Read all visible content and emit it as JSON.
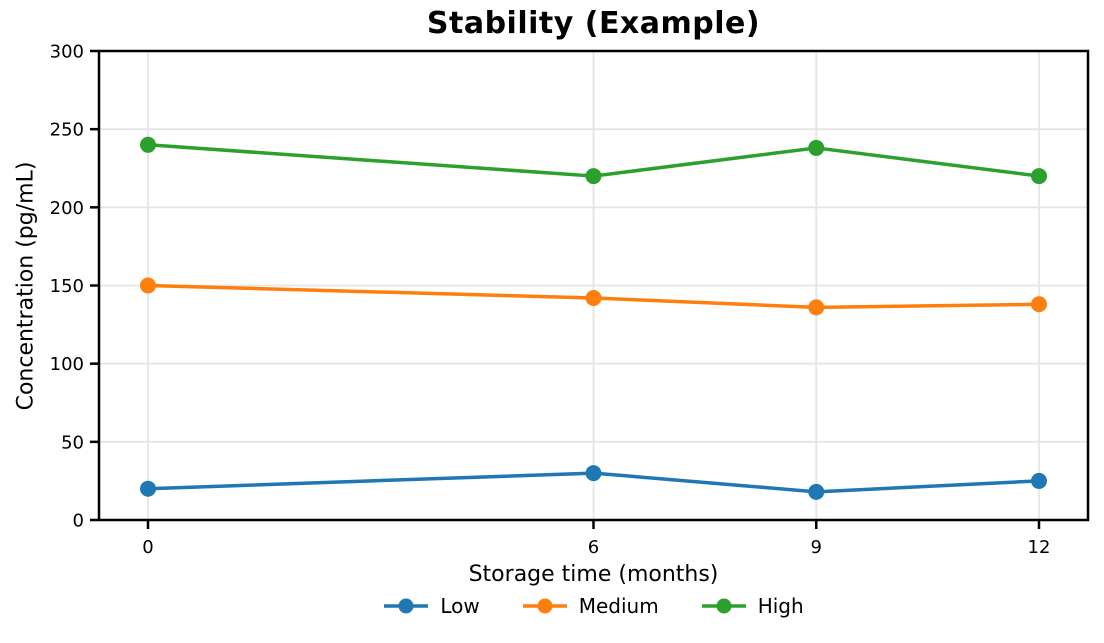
{
  "chart_data": {
    "type": "line",
    "title": "Stability (Example)",
    "xlabel": "Storage time (months)",
    "ylabel": "Concentration (pg/mL)",
    "x": [
      0,
      6,
      9,
      12
    ],
    "xticks": [
      0,
      6,
      9,
      12
    ],
    "yticks": [
      0,
      50,
      100,
      150,
      200,
      250,
      300
    ],
    "xlim": [
      -0.66,
      12.66
    ],
    "ylim": [
      0,
      300
    ],
    "grid": true,
    "legend_position": "bottom",
    "series": [
      {
        "name": "Low",
        "color": "#1f77b4",
        "values": [
          20,
          30,
          18,
          25
        ]
      },
      {
        "name": "Medium",
        "color": "#ff7f0e",
        "values": [
          150,
          142,
          136,
          138
        ]
      },
      {
        "name": "High",
        "color": "#2ca02c",
        "values": [
          240,
          220,
          238,
          220
        ]
      }
    ]
  },
  "colors": {
    "background": "#ffffff",
    "axis": "#000000",
    "grid": "#e5e5e5",
    "blue": "#1f77b4",
    "orange": "#ff7f0e",
    "green": "#2ca02c"
  }
}
